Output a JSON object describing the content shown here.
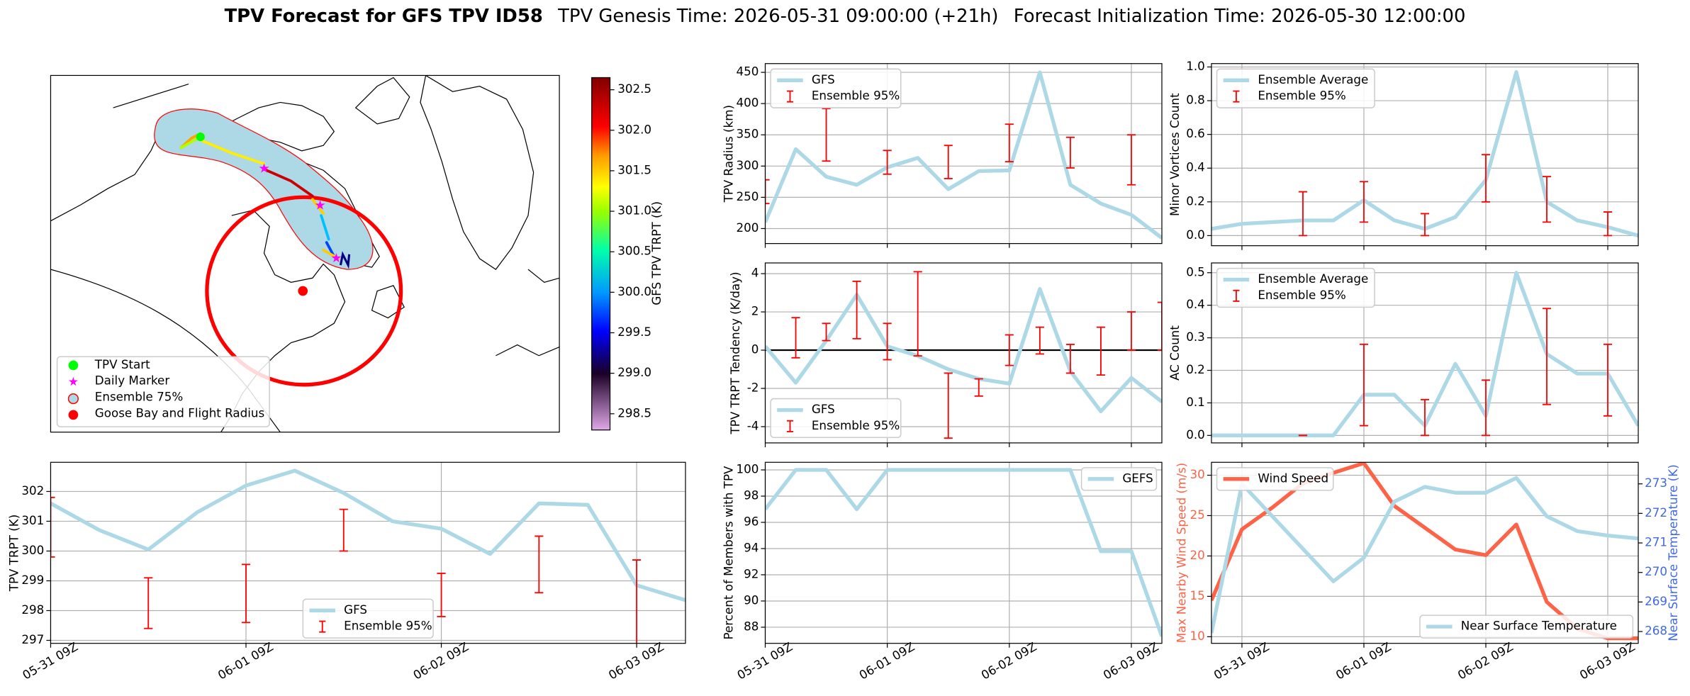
{
  "title": {
    "main": "TPV Forecast for GFS TPV ID58",
    "genesis": "TPV Genesis Time: 2026-05-31 09:00:00 (+21h)",
    "init": "Forecast Initialization Time: 2026-05-30 12:00:00"
  },
  "map": {
    "legend": [
      "TPV Start",
      "Daily Marker",
      "Ensemble 75%",
      "Goose Bay and Flight Radius"
    ],
    "colorbar": {
      "label": "GFS TPV TRPT (K)",
      "lim": [
        298.3,
        302.65
      ],
      "ticks": [
        298.5,
        {
          "value": 299,
          "label": "299.0"
        },
        299.5,
        {
          "value": 300,
          "label": "300.0"
        },
        300.5,
        {
          "value": 301,
          "label": "301.0"
        },
        301.5,
        {
          "value": 302,
          "label": "302.0"
        },
        302.5
      ]
    }
  },
  "chart_data": [
    {
      "type": "line",
      "ylabel": "TPV Radius (km)",
      "categories": [
        null,
        null,
        null,
        null,
        null,
        null,
        null,
        null,
        null,
        null,
        null,
        null,
        null,
        null
      ],
      "xticks": [
        0,
        4,
        8,
        12
      ],
      "ylim": [
        176,
        464
      ],
      "yticks": [
        200,
        250,
        300,
        350,
        400,
        450
      ],
      "grid": true,
      "legend": "upper left",
      "series": [
        {
          "name": "GFS",
          "color": "#add8e6",
          "values": [
            210,
            327,
            283,
            270,
            298,
            313,
            263,
            292,
            293,
            450,
            270,
            240,
            222,
            185
          ]
        }
      ],
      "errorbars": {
        "name": "Ensemble 95%",
        "color": "#ff0000",
        "lows": [
          240,
          null,
          308,
          null,
          287,
          null,
          280,
          null,
          307,
          null,
          297,
          null,
          270,
          null
        ],
        "highs": [
          278,
          null,
          392,
          null,
          325,
          null,
          333,
          null,
          367,
          null,
          346,
          null,
          350,
          null
        ]
      }
    },
    {
      "type": "line",
      "ylabel": "Minor Vortices Count",
      "categories": [
        null,
        null,
        null,
        null,
        null,
        null,
        null,
        null,
        null,
        null,
        null,
        null,
        null,
        null,
        null
      ],
      "xticks": [
        1,
        5,
        9,
        13
      ],
      "ylim": [
        -0.06,
        1.02
      ],
      "yticks": [
        {
          "value": 0,
          "label": "0.0"
        },
        0.2,
        0.4,
        0.6,
        0.8,
        {
          "value": 1,
          "label": "1.0"
        }
      ],
      "grid": true,
      "legend": "upper left",
      "series": [
        {
          "name": "Ensemble Average",
          "color": "#add8e6",
          "values": [
            0.04,
            0.07,
            0.08,
            0.09,
            0.09,
            0.21,
            0.09,
            0.04,
            0.11,
            0.33,
            0.97,
            0.2,
            0.09,
            0.05,
            0
          ]
        }
      ],
      "errorbars": {
        "name": "Ensemble 95%",
        "color": "#ff0000",
        "lows": [
          null,
          null,
          null,
          0,
          null,
          0.08,
          null,
          0,
          null,
          0.2,
          null,
          0.08,
          null,
          0,
          null
        ],
        "highs": [
          null,
          null,
          null,
          0.26,
          null,
          0.32,
          null,
          0.13,
          null,
          0.48,
          null,
          0.35,
          null,
          0.14,
          null
        ]
      }
    },
    {
      "type": "line",
      "ylabel": "TPV TRPT Tendency (K/day)",
      "categories": [
        null,
        null,
        null,
        null,
        null,
        null,
        null,
        null,
        null,
        null,
        null,
        null,
        null,
        null
      ],
      "xticks": [
        0,
        4,
        8,
        12
      ],
      "ylim": [
        -4.85,
        4.56
      ],
      "yticks": [
        -4,
        -2,
        0,
        2,
        4
      ],
      "grid": true,
      "legend": "lower left",
      "hline": 0,
      "series": [
        {
          "name": "GFS",
          "color": "#add8e6",
          "values": [
            0.2,
            -1.7,
            0.5,
            2.9,
            0.2,
            -0.3,
            -1.0,
            -1.5,
            -1.75,
            3.2,
            -1.1,
            -3.2,
            -1.45,
            -2.7
          ]
        }
      ],
      "errorbars": {
        "name": "Ensemble 95%",
        "color": "#ff0000",
        "lows": [
          null,
          -0.4,
          0.5,
          0.6,
          -0.5,
          -0.3,
          -4.6,
          -2.4,
          -0.8,
          -0.2,
          -1.2,
          -1.3,
          0,
          0
        ],
        "highs": [
          null,
          1.7,
          1.4,
          3.6,
          1.4,
          4.1,
          -1.2,
          -1.5,
          0.8,
          1.2,
          0.3,
          1.2,
          2,
          2.5
        ]
      }
    },
    {
      "type": "line",
      "ylabel": "AC Count",
      "categories": [
        null,
        null,
        null,
        null,
        null,
        null,
        null,
        null,
        null,
        null,
        null,
        null,
        null,
        null,
        null
      ],
      "xticks": [
        1,
        5,
        9,
        13
      ],
      "ylim": [
        -0.023,
        0.53
      ],
      "yticks": [
        {
          "value": 0,
          "label": "0.0"
        },
        0.1,
        0.2,
        0.3,
        0.4,
        0.5
      ],
      "grid": true,
      "legend": "upper left",
      "series": [
        {
          "name": "Ensemble Average",
          "color": "#add8e6",
          "values": [
            0,
            0,
            0,
            0,
            0,
            0.125,
            0.125,
            0.03,
            0.22,
            0.06,
            0.5,
            0.25,
            0.19,
            0.19,
            0.03
          ]
        }
      ],
      "errorbars": {
        "name": "Ensemble 95%",
        "color": "#ff0000",
        "lows": [
          null,
          null,
          null,
          0,
          null,
          0.03,
          null,
          0,
          null,
          0,
          null,
          0.095,
          null,
          0.06,
          null
        ],
        "highs": [
          null,
          null,
          null,
          0,
          null,
          0.28,
          null,
          0.11,
          null,
          0.17,
          null,
          0.39,
          null,
          0.28,
          null
        ]
      }
    },
    {
      "type": "line",
      "ylabel": "TPV TRPT (K)",
      "categories": [
        "05-31 09Z",
        null,
        null,
        null,
        "06-01 09Z",
        null,
        null,
        null,
        "06-02 09Z",
        null,
        null,
        null,
        "06-03 09Z",
        null
      ],
      "xticks": [
        0,
        4,
        8,
        12
      ],
      "ylim": [
        296.9,
        302.98
      ],
      "yticks": [
        297,
        298,
        299,
        300,
        301,
        302
      ],
      "grid": true,
      "legend": "lower center",
      "series": [
        {
          "name": "GFS",
          "color": "#add8e6",
          "values": [
            301.6,
            300.7,
            300.05,
            301.3,
            302.2,
            302.7,
            301.95,
            301.0,
            300.75,
            299.9,
            301.6,
            301.55,
            298.85,
            298.35
          ]
        }
      ],
      "errorbars": {
        "name": "Ensemble 95%",
        "color": "#ff0000",
        "lows": [
          299.8,
          null,
          297.4,
          null,
          297.6,
          null,
          300.0,
          null,
          297.8,
          null,
          298.6,
          null,
          296.4,
          null
        ],
        "highs": [
          301.8,
          null,
          299.1,
          null,
          299.55,
          null,
          301.4,
          null,
          299.25,
          null,
          300.5,
          null,
          299.7,
          null
        ]
      }
    },
    {
      "type": "line",
      "ylabel": "Percent of Members with TPV",
      "categories": [
        "05-31 09Z",
        null,
        null,
        null,
        "06-01 09Z",
        null,
        null,
        null,
        "06-02 09Z",
        null,
        null,
        null,
        "06-03 09Z",
        null
      ],
      "xticks": [
        0,
        4,
        8,
        12
      ],
      "ylim": [
        86.77,
        100.58
      ],
      "yticks": [
        88,
        90,
        92,
        94,
        96,
        98,
        100
      ],
      "grid": true,
      "legend": "upper right",
      "series": [
        {
          "name": "GEFS",
          "color": "#add8e6",
          "values": [
            97,
            100,
            100,
            97,
            100,
            100,
            100,
            100,
            100,
            100,
            100,
            93.8,
            93.8,
            87.3
          ]
        }
      ]
    },
    {
      "type": "line",
      "ylabel": "Max Nearby Wind Speed (m/s)",
      "ycolor": "#ff6347",
      "y2label": "Near Surface Temperature (K)",
      "y2color": "#4169e1",
      "categories": [
        null,
        "05-31 09Z",
        null,
        null,
        null,
        "06-01 09Z",
        null,
        null,
        null,
        "06-02 09Z",
        null,
        null,
        null,
        "06-03 09Z",
        null
      ],
      "xticks": [
        1,
        5,
        9,
        13
      ],
      "ylim": [
        9.18,
        31.6
      ],
      "yticks": [
        10,
        15,
        20,
        25,
        30
      ],
      "y2lim": [
        267.6,
        273.73
      ],
      "y2ticks": [
        268,
        269,
        270,
        271,
        272,
        273
      ],
      "grid": true,
      "legend": "upper left",
      "legend2": "lower right",
      "series": [
        {
          "name": "Wind Speed",
          "color": "#ff6347",
          "values": [
            14.5,
            23.3,
            26,
            29,
            30.3,
            31.5,
            26.2,
            23.5,
            20.8,
            20.1,
            23.9,
            14.3,
            11,
            9.8,
            9.8
          ]
        },
        {
          "name": "Near Surface Temperature",
          "color": "#add8e6",
          "axis": "y2",
          "values": [
            267.95,
            273.0,
            271.9,
            270.8,
            269.7,
            270.5,
            272.4,
            272.9,
            272.7,
            272.7,
            273.2,
            271.9,
            271.4,
            271.25,
            271.15
          ]
        }
      ]
    }
  ]
}
